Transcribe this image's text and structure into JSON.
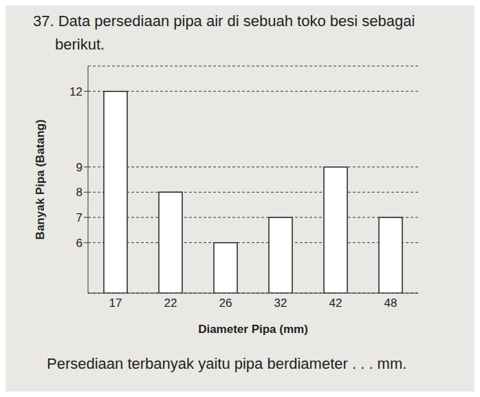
{
  "chart_data": {
    "type": "bar",
    "title": "37. Data persediaan pipa air di sebuah toko besi sebagai berikut.",
    "annotations": [
      "Persediaan terbanyak yaitu pipa berdiameter . . . mm."
    ],
    "x_label": "Diameter Pipa (mm)",
    "y_label": "Banyak Pipa (Batang)",
    "categories": [
      "17",
      "22",
      "26",
      "32",
      "42",
      "48"
    ],
    "values": [
      12,
      8,
      6,
      7,
      9,
      7
    ],
    "color": "#ffffff",
    "ylim": [
      4,
      13
    ],
    "yticks": [
      6,
      7,
      8,
      9,
      12
    ],
    "grid": true
  }
}
